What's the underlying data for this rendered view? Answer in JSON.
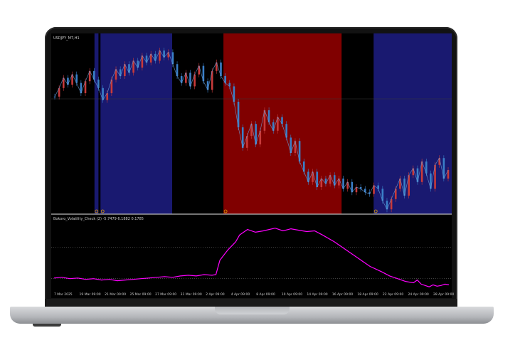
{
  "window": {
    "title": "USDJPY_M7,H1"
  },
  "indicator": {
    "label": "Bokoro_Volatility_Check (2) -5.7479 6.1882 0.1785"
  },
  "colors": {
    "background": "#000000",
    "blue_zone": "#191970",
    "red_zone": "#800000",
    "candle_up": "#c83a3a",
    "candle_down": "#3a7fc8",
    "indicator_line": "#ff00ff",
    "separator": "#bbbbbb",
    "marker": "#e0a000"
  },
  "time_axis": {
    "labels": [
      "7 Mar 2025",
      "19 Mar 09:00",
      "21 Mar 09:00",
      "25 Mar 09:00",
      "27 Mar 09:00",
      "31 Mar 09:00",
      "2 Apr 09:00",
      "4 Apr 09:00",
      "8 Apr 09:00",
      "10 Apr 09:00",
      "14 Apr 09:00",
      "16 Apr 09:00",
      "18 Apr 09:00",
      "22 Apr 09:00",
      "24 Apr 09:00",
      "28 Apr 09:00"
    ]
  },
  "chart_data": [
    {
      "type": "line",
      "title": "USDJPY_M7,H1",
      "zones": [
        {
          "color": "blue",
          "from": 0.108,
          "to": 0.118
        },
        {
          "color": "blue",
          "from": 0.123,
          "to": 0.302
        },
        {
          "color": "red",
          "from": 0.43,
          "to": 0.725
        },
        {
          "color": "blue",
          "from": 0.805,
          "to": 1.0
        }
      ],
      "price_y": [
        0.32,
        0.27,
        0.21,
        0.25,
        0.19,
        0.24,
        0.3,
        0.23,
        0.17,
        0.22,
        0.27,
        0.34,
        0.3,
        0.22,
        0.16,
        0.2,
        0.13,
        0.18,
        0.11,
        0.15,
        0.08,
        0.12,
        0.07,
        0.11,
        0.05,
        0.09,
        0.06,
        0.13,
        0.2,
        0.24,
        0.18,
        0.26,
        0.19,
        0.14,
        0.23,
        0.28,
        0.17,
        0.12,
        0.2,
        0.24,
        0.26,
        0.35,
        0.5,
        0.62,
        0.55,
        0.48,
        0.6,
        0.52,
        0.4,
        0.47,
        0.52,
        0.44,
        0.48,
        0.56,
        0.65,
        0.58,
        0.7,
        0.76,
        0.82,
        0.76,
        0.85,
        0.8,
        0.83,
        0.78,
        0.84,
        0.8,
        0.86,
        0.82,
        0.88,
        0.85,
        0.86,
        0.88,
        0.89,
        0.84,
        0.86,
        0.93,
        0.98,
        0.92,
        0.86,
        0.8,
        0.9,
        0.78,
        0.74,
        0.82,
        0.7,
        0.77,
        0.86,
        0.72,
        0.68,
        0.8,
        0.75
      ]
    },
    {
      "type": "line",
      "title": "Bokoro_Volatility_Check (2) -5.7479 6.1882 0.1785",
      "values": [
        0.81,
        0.8,
        0.82,
        0.81,
        0.83,
        0.82,
        0.84,
        0.83,
        0.85,
        0.84,
        0.83,
        0.82,
        0.81,
        0.8,
        0.79,
        0.8,
        0.78,
        0.77,
        0.78,
        0.76,
        0.77,
        0.76,
        0.55,
        0.4,
        0.28,
        0.18,
        0.1,
        0.14,
        0.12,
        0.08,
        0.12,
        0.09,
        0.11,
        0.13,
        0.12,
        0.18,
        0.28,
        0.4,
        0.52,
        0.64,
        0.72,
        0.78,
        0.82,
        0.86,
        0.88,
        0.84,
        0.9,
        0.92,
        0.94,
        0.91,
        0.93,
        0.92,
        0.9,
        0.91
      ],
      "x": [
        0.0,
        0.02,
        0.04,
        0.06,
        0.08,
        0.1,
        0.12,
        0.14,
        0.16,
        0.18,
        0.2,
        0.22,
        0.24,
        0.26,
        0.28,
        0.3,
        0.32,
        0.34,
        0.36,
        0.38,
        0.4,
        0.41,
        0.42,
        0.44,
        0.46,
        0.47,
        0.49,
        0.51,
        0.53,
        0.56,
        0.58,
        0.6,
        0.62,
        0.64,
        0.66,
        0.68,
        0.71,
        0.74,
        0.77,
        0.8,
        0.83,
        0.85,
        0.87,
        0.89,
        0.91,
        0.92,
        0.93,
        0.94,
        0.95,
        0.96,
        0.97,
        0.98,
        0.99,
        1.0
      ]
    }
  ]
}
